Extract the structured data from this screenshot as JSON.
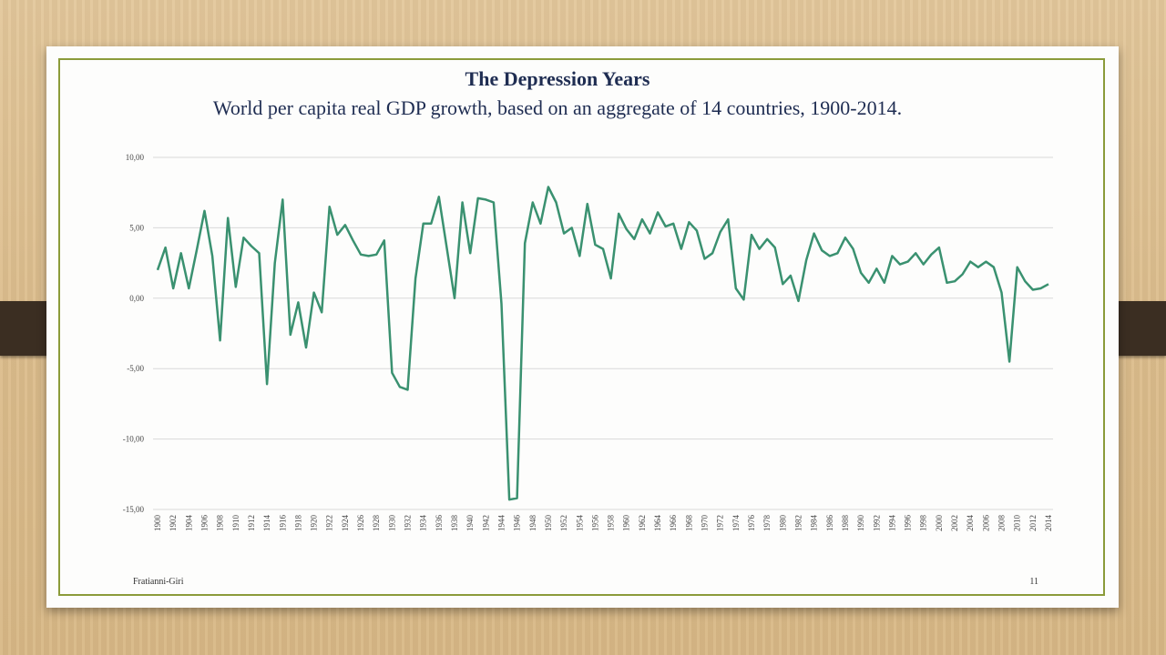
{
  "slide": {
    "title": "The Depression Years",
    "subtitle": "World per capita real GDP growth, based on an aggregate of 14 countries, 1900-2014.",
    "footer_left": "Fratianni-Giri",
    "footer_right": "11"
  },
  "colors": {
    "line": "#3a9170",
    "grid": "#d9d9d9",
    "frame": "#8b9b3a",
    "title": "#1f2d52"
  },
  "chart_data": {
    "type": "line",
    "title": "",
    "xlabel": "",
    "ylabel": "",
    "ylim": [
      -15,
      10
    ],
    "yticks": [
      "10,00",
      "5,00",
      "0,00",
      "-5,00",
      "-10,00",
      "-15,00"
    ],
    "ytick_values": [
      10,
      5,
      0,
      -5,
      -10,
      -15
    ],
    "grid": true,
    "legend": "none",
    "x": [
      1900,
      1901,
      1902,
      1903,
      1904,
      1905,
      1906,
      1907,
      1908,
      1909,
      1910,
      1911,
      1912,
      1913,
      1914,
      1915,
      1916,
      1917,
      1918,
      1919,
      1920,
      1921,
      1922,
      1923,
      1924,
      1925,
      1926,
      1927,
      1928,
      1929,
      1930,
      1931,
      1932,
      1933,
      1934,
      1935,
      1936,
      1937,
      1938,
      1939,
      1940,
      1941,
      1942,
      1943,
      1944,
      1945,
      1946,
      1947,
      1948,
      1949,
      1950,
      1951,
      1952,
      1953,
      1954,
      1955,
      1956,
      1957,
      1958,
      1959,
      1960,
      1961,
      1962,
      1963,
      1964,
      1965,
      1966,
      1967,
      1968,
      1969,
      1970,
      1971,
      1972,
      1973,
      1974,
      1975,
      1976,
      1977,
      1978,
      1979,
      1980,
      1981,
      1982,
      1983,
      1984,
      1985,
      1986,
      1987,
      1988,
      1989,
      1990,
      1991,
      1992,
      1993,
      1994,
      1995,
      1996,
      1997,
      1998,
      1999,
      2000,
      2001,
      2002,
      2003,
      2004,
      2005,
      2006,
      2007,
      2008,
      2009,
      2010,
      2011,
      2012,
      2013,
      2014
    ],
    "xticks": [
      "1900",
      "1902",
      "1904",
      "1906",
      "1908",
      "1910",
      "1912",
      "1914",
      "1916",
      "1918",
      "1920",
      "1922",
      "1924",
      "1926",
      "1928",
      "1930",
      "1932",
      "1934",
      "1936",
      "1938",
      "1940",
      "1942",
      "1944",
      "1946",
      "1948",
      "1950",
      "1952",
      "1954",
      "1956",
      "1958",
      "1960",
      "1962",
      "1964",
      "1966",
      "1968",
      "1970",
      "1972",
      "1974",
      "1976",
      "1978",
      "1980",
      "1982",
      "1984",
      "1986",
      "1988",
      "1990",
      "1992",
      "1994",
      "1996",
      "1998",
      "2000",
      "2002",
      "2004",
      "2006",
      "2008",
      "2010",
      "2012",
      "2014"
    ],
    "series": [
      {
        "values": [
          2.0,
          3.6,
          0.7,
          3.2,
          0.7,
          3.4,
          6.2,
          3.0,
          -3.0,
          5.7,
          0.8,
          4.3,
          3.7,
          3.2,
          -6.1,
          2.5,
          7.0,
          -2.6,
          -0.3,
          -3.5,
          0.4,
          -1.0,
          6.5,
          4.5,
          5.2,
          4.1,
          3.1,
          3.0,
          3.1,
          4.1,
          -5.3,
          -6.3,
          -6.5,
          1.4,
          5.3,
          5.3,
          7.2,
          3.6,
          0.0,
          6.8,
          3.2,
          7.1,
          7.0,
          6.8,
          -0.4,
          -14.3,
          -14.2,
          3.9,
          6.8,
          5.3,
          7.9,
          6.8,
          4.6,
          5.0,
          3.0,
          6.7,
          3.8,
          3.5,
          1.4,
          6.0,
          4.9,
          4.2,
          5.6,
          4.6,
          6.1,
          5.1,
          5.3,
          3.5,
          5.4,
          4.8,
          2.8,
          3.2,
          4.7,
          5.6,
          0.7,
          -0.1,
          4.5,
          3.5,
          4.2,
          3.6,
          1.0,
          1.6,
          -0.2,
          2.7,
          4.6,
          3.4,
          3.0,
          3.2,
          4.3,
          3.5,
          1.8,
          1.1,
          2.1,
          1.1,
          3.0,
          2.4,
          2.6,
          3.2,
          2.4,
          3.1,
          3.6,
          1.1,
          1.2,
          1.7,
          2.6,
          2.2,
          2.6,
          2.2,
          0.4,
          -4.5,
          2.2,
          1.2,
          0.6,
          0.7,
          1.0
        ]
      }
    ]
  }
}
